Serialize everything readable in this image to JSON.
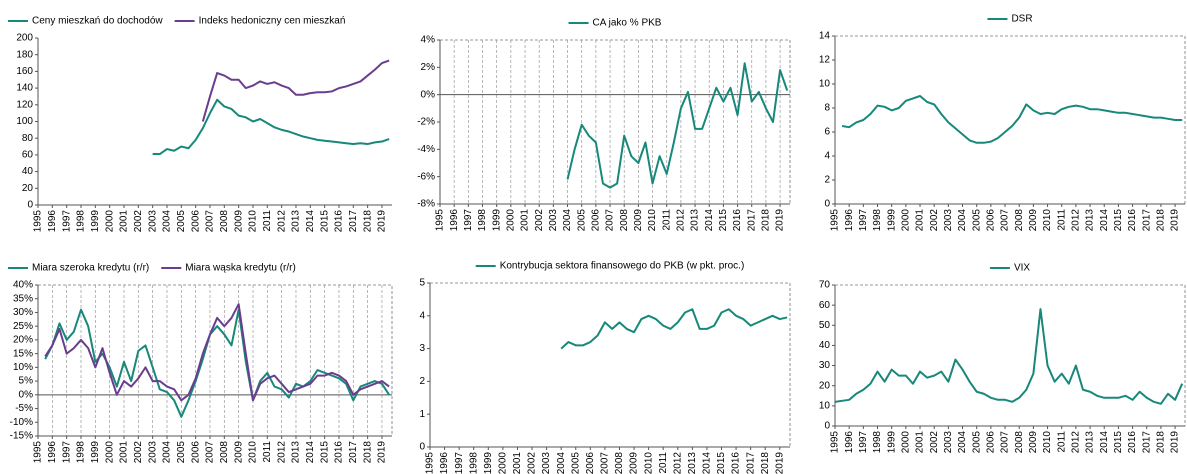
{
  "chart_data": [
    {
      "type": "line",
      "legend": "top-left",
      "grid": false,
      "frame": "axes",
      "series": [
        {
          "name": "Ceny mieszkań do dochodów",
          "color": "#17887a",
          "x": [
            2003,
            2003.5,
            2004,
            2004.5,
            2005,
            2005.5,
            2006,
            2006.5,
            2007,
            2007.5,
            2008,
            2008.5,
            2009,
            2009.5,
            2010,
            2010.5,
            2011,
            2011.5,
            2012,
            2012.5,
            2013,
            2013.5,
            2014,
            2014.5,
            2015,
            2015.5,
            2016,
            2016.5,
            2017,
            2017.5,
            2018,
            2018.5,
            2019,
            2019.5
          ],
          "values": [
            61,
            61,
            67,
            65,
            70,
            68,
            78,
            92,
            110,
            126,
            118,
            115,
            107,
            105,
            100,
            103,
            98,
            93,
            90,
            88,
            85,
            82,
            80,
            78,
            77,
            76,
            75,
            74,
            73,
            74,
            73,
            75,
            76,
            79
          ]
        },
        {
          "name": "Indeks hedoniczny cen mieszkań",
          "color": "#6a3d8f",
          "x": [
            2006.5,
            2007,
            2007.5,
            2008,
            2008.5,
            2009,
            2009.5,
            2010,
            2010.5,
            2011,
            2011.5,
            2012,
            2012.5,
            2013,
            2013.5,
            2014,
            2014.5,
            2015,
            2015.5,
            2016,
            2016.5,
            2017,
            2017.5,
            2018,
            2018.5,
            2019,
            2019.5
          ],
          "values": [
            100,
            130,
            158,
            155,
            150,
            150,
            140,
            143,
            148,
            145,
            147,
            143,
            140,
            132,
            132,
            134,
            135,
            135,
            136,
            140,
            142,
            145,
            148,
            155,
            162,
            170,
            173
          ]
        }
      ],
      "xlim": [
        1995,
        2019.7
      ],
      "xticks": [
        1995,
        1996,
        1997,
        1998,
        1999,
        2000,
        2001,
        2002,
        2003,
        2004,
        2005,
        2006,
        2007,
        2008,
        2009,
        2010,
        2011,
        2012,
        2013,
        2014,
        2015,
        2016,
        2017,
        2018,
        2019
      ],
      "ylim": [
        0,
        200
      ],
      "yticks": [
        0,
        20,
        40,
        60,
        80,
        100,
        120,
        140,
        160,
        180,
        200
      ]
    },
    {
      "type": "line",
      "legend": "top-center",
      "grid": true,
      "frame": "dashed",
      "series": [
        {
          "name": "CA jako % PKB",
          "color": "#17887a",
          "x": [
            2004,
            2004.5,
            2005,
            2005.5,
            2006,
            2006.5,
            2007,
            2007.5,
            2008,
            2008.5,
            2009,
            2009.5,
            2010,
            2010.5,
            2011,
            2011.5,
            2012,
            2012.5,
            2013,
            2013.5,
            2014,
            2014.5,
            2015,
            2015.5,
            2016,
            2016.5,
            2017,
            2017.5,
            2018,
            2018.5,
            2019,
            2019.5
          ],
          "values": [
            -6.2,
            -4,
            -2.2,
            -3,
            -3.5,
            -6.5,
            -6.8,
            -6.5,
            -3,
            -4.5,
            -5,
            -3.5,
            -6.5,
            -4.5,
            -5.8,
            -3.5,
            -1,
            0.2,
            -2.5,
            -2.5,
            -1,
            0.5,
            -0.5,
            0.5,
            -1.5,
            2.3,
            -0.5,
            0.2,
            -1,
            -2,
            1.8,
            0.3
          ]
        }
      ],
      "xlim": [
        1995,
        2019.7
      ],
      "xticks": [
        1995,
        1996,
        1997,
        1998,
        1999,
        2000,
        2001,
        2002,
        2003,
        2004,
        2005,
        2006,
        2007,
        2008,
        2009,
        2010,
        2011,
        2012,
        2013,
        2014,
        2015,
        2016,
        2017,
        2018,
        2019
      ],
      "ylim": [
        -8,
        4
      ],
      "yticks": [
        {
          "value": -8,
          "label": "-8%"
        },
        {
          "value": -6,
          "label": "-6%"
        },
        {
          "value": -4,
          "label": "-4%"
        },
        {
          "value": -2,
          "label": "-2%"
        },
        {
          "value": 0,
          "label": "0%"
        },
        {
          "value": 2,
          "label": "2%"
        },
        {
          "value": 4,
          "label": "4%"
        }
      ]
    },
    {
      "type": "line",
      "legend": "top-center",
      "grid": false,
      "frame": "dashed",
      "series": [
        {
          "name": "DSR",
          "color": "#17887a",
          "x": [
            1995.5,
            1996,
            1996.5,
            1997,
            1997.5,
            1998,
            1998.5,
            1999,
            1999.5,
            2000,
            2000.5,
            2001,
            2001.5,
            2002,
            2002.5,
            2003,
            2003.5,
            2004,
            2004.5,
            2005,
            2005.5,
            2006,
            2006.5,
            2007,
            2007.5,
            2008,
            2008.5,
            2009,
            2009.5,
            2010,
            2010.5,
            2011,
            2011.5,
            2012,
            2012.5,
            2013,
            2013.5,
            2014,
            2014.5,
            2015,
            2015.5,
            2016,
            2016.5,
            2017,
            2017.5,
            2018,
            2018.5,
            2019,
            2019.5
          ],
          "values": [
            6.5,
            6.4,
            6.8,
            7,
            7.5,
            8.2,
            8.1,
            7.8,
            8,
            8.6,
            8.8,
            9,
            8.5,
            8.3,
            7.5,
            6.8,
            6.3,
            5.8,
            5.3,
            5.1,
            5.1,
            5.2,
            5.5,
            6,
            6.5,
            7.2,
            8.3,
            7.8,
            7.5,
            7.6,
            7.5,
            7.9,
            8.1,
            8.2,
            8.1,
            7.9,
            7.9,
            7.8,
            7.7,
            7.6,
            7.6,
            7.5,
            7.4,
            7.3,
            7.2,
            7.2,
            7.1,
            7,
            7
          ]
        }
      ],
      "xlim": [
        1995,
        2019.7
      ],
      "xticks": [
        1995,
        1996,
        1997,
        1998,
        1999,
        2000,
        2001,
        2002,
        2003,
        2004,
        2005,
        2006,
        2007,
        2008,
        2009,
        2010,
        2011,
        2012,
        2013,
        2014,
        2015,
        2016,
        2017,
        2018,
        2019
      ],
      "ylim": [
        0,
        14
      ],
      "yticks": [
        0,
        2,
        4,
        6,
        8,
        10,
        12,
        14
      ]
    },
    {
      "type": "line",
      "legend": "top-left",
      "grid": true,
      "frame": "dashed",
      "series": [
        {
          "name": "Miara szeroka kredytu (r/r)",
          "color": "#17887a",
          "x": [
            1995.5,
            1996,
            1996.5,
            1997,
            1997.5,
            1998,
            1998.5,
            1999,
            1999.5,
            2000,
            2000.5,
            2001,
            2001.5,
            2002,
            2002.5,
            2003,
            2003.5,
            2004,
            2004.5,
            2005,
            2005.5,
            2006,
            2006.5,
            2007,
            2007.5,
            2008,
            2008.5,
            2009,
            2009.5,
            2010,
            2010.5,
            2011,
            2011.5,
            2012,
            2012.5,
            2013,
            2013.5,
            2014,
            2014.5,
            2015,
            2015.5,
            2016,
            2016.5,
            2017,
            2017.5,
            2018,
            2018.5,
            2019,
            2019.5
          ],
          "values": [
            13,
            18,
            26,
            20,
            23,
            31,
            25,
            12,
            15,
            10,
            3,
            12,
            5,
            16,
            18,
            10,
            2,
            1,
            -2,
            -8,
            -2,
            5,
            13,
            22,
            25,
            22,
            18,
            31,
            12,
            -2,
            5,
            8,
            3,
            2,
            -1,
            4,
            3,
            5,
            9,
            8,
            7,
            6,
            4,
            -2,
            3,
            4,
            5,
            4,
            0
          ]
        },
        {
          "name": "Miara wąska kredytu (r/r)",
          "color": "#6a3d8f",
          "x": [
            1995.5,
            1996,
            1996.5,
            1997,
            1997.5,
            1998,
            1998.5,
            1999,
            1999.5,
            2000,
            2000.5,
            2001,
            2001.5,
            2002,
            2002.5,
            2003,
            2003.5,
            2004,
            2004.5,
            2005,
            2005.5,
            2006,
            2006.5,
            2007,
            2007.5,
            2008,
            2008.5,
            2009,
            2009.5,
            2010,
            2010.5,
            2011,
            2011.5,
            2012,
            2012.5,
            2013,
            2013.5,
            2014,
            2014.5,
            2015,
            2015.5,
            2016,
            2016.5,
            2017,
            2017.5,
            2018,
            2018.5,
            2019,
            2019.5
          ],
          "values": [
            14,
            18,
            24,
            15,
            17,
            20,
            17,
            10,
            17,
            8,
            0,
            5,
            3,
            6,
            10,
            5,
            5,
            3,
            2,
            -2,
            0,
            6,
            15,
            22,
            28,
            25,
            28,
            33,
            15,
            -2,
            4,
            6,
            7,
            4,
            1,
            2,
            3,
            4,
            7,
            7,
            8,
            7,
            5,
            0,
            2,
            3,
            4,
            5,
            3
          ]
        }
      ],
      "xlim": [
        1995,
        2019.7
      ],
      "xticks": [
        1995,
        1996,
        1997,
        1998,
        1999,
        2000,
        2001,
        2002,
        2003,
        2004,
        2005,
        2006,
        2007,
        2008,
        2009,
        2010,
        2011,
        2012,
        2013,
        2014,
        2015,
        2016,
        2017,
        2018,
        2019
      ],
      "ylim": [
        -15,
        40
      ],
      "yticks": [
        {
          "value": -15,
          "label": "-15%"
        },
        {
          "value": -10,
          "label": "-10%"
        },
        {
          "value": -5,
          "label": "-5%"
        },
        {
          "value": 0,
          "label": "0%"
        },
        {
          "value": 5,
          "label": "5%"
        },
        {
          "value": 10,
          "label": "10%"
        },
        {
          "value": 15,
          "label": "15%"
        },
        {
          "value": 20,
          "label": "20%"
        },
        {
          "value": 25,
          "label": "25%"
        },
        {
          "value": 30,
          "label": "30%"
        },
        {
          "value": 35,
          "label": "35%"
        },
        {
          "value": 40,
          "label": "40%"
        }
      ]
    },
    {
      "type": "line",
      "legend": "top-center",
      "grid": false,
      "frame": "dashed",
      "series": [
        {
          "name": "Kontrybucja sektora finansowego do PKB (w pkt. proc.)",
          "color": "#17887a",
          "x": [
            2004,
            2004.5,
            2005,
            2005.5,
            2006,
            2006.5,
            2007,
            2007.5,
            2008,
            2008.5,
            2009,
            2009.5,
            2010,
            2010.5,
            2011,
            2011.5,
            2012,
            2012.5,
            2013,
            2013.5,
            2014,
            2014.5,
            2015,
            2015.5,
            2016,
            2016.5,
            2017,
            2017.5,
            2018,
            2018.5,
            2019,
            2019.5
          ],
          "values": [
            3,
            3.2,
            3.1,
            3.1,
            3.2,
            3.4,
            3.8,
            3.6,
            3.8,
            3.6,
            3.5,
            3.9,
            4,
            3.9,
            3.7,
            3.6,
            3.8,
            4.1,
            4.2,
            3.6,
            3.6,
            3.7,
            4.1,
            4.2,
            4,
            3.9,
            3.7,
            3.8,
            3.9,
            4,
            3.9,
            3.95
          ]
        }
      ],
      "xlim": [
        1995,
        2019.7
      ],
      "xticks": [
        1995,
        1996,
        1997,
        1998,
        1999,
        2000,
        2001,
        2002,
        2003,
        2004,
        2005,
        2006,
        2007,
        2008,
        2009,
        2010,
        2011,
        2012,
        2013,
        2014,
        2015,
        2016,
        2017,
        2018,
        2019
      ],
      "ylim": [
        0,
        5
      ],
      "yticks": [
        0,
        1,
        2,
        3,
        4,
        5
      ]
    },
    {
      "type": "line",
      "legend": "top-center",
      "grid": false,
      "frame": "dashed",
      "series": [
        {
          "name": "VIX",
          "color": "#17887a",
          "x": [
            1995,
            1995.5,
            1996,
            1996.5,
            1997,
            1997.5,
            1998,
            1998.5,
            1999,
            1999.5,
            2000,
            2000.5,
            2001,
            2001.5,
            2002,
            2002.5,
            2003,
            2003.5,
            2004,
            2004.5,
            2005,
            2005.5,
            2006,
            2006.5,
            2007,
            2007.5,
            2008,
            2008.5,
            2009,
            2009.5,
            2010,
            2010.5,
            2011,
            2011.5,
            2012,
            2012.5,
            2013,
            2013.5,
            2014,
            2014.5,
            2015,
            2015.5,
            2016,
            2016.5,
            2017,
            2017.5,
            2018,
            2018.5,
            2019,
            2019.5
          ],
          "values": [
            12,
            12.5,
            13,
            16,
            18,
            21,
            27,
            22,
            28,
            25,
            25,
            21,
            27,
            24,
            25,
            27,
            22,
            33,
            28,
            22,
            17,
            16,
            14,
            13,
            13,
            12,
            14,
            18,
            26,
            58,
            30,
            22,
            26,
            21,
            30,
            18,
            17,
            15,
            14,
            14,
            14,
            15,
            13,
            17,
            14,
            12,
            11,
            16,
            13,
            21
          ]
        }
      ],
      "xlim": [
        1995,
        2019.7
      ],
      "xticks": [
        1995,
        1996,
        1997,
        1998,
        1999,
        2000,
        2001,
        2002,
        2003,
        2004,
        2005,
        2006,
        2007,
        2008,
        2009,
        2010,
        2011,
        2012,
        2013,
        2014,
        2015,
        2016,
        2017,
        2018,
        2019
      ],
      "ylim": [
        0,
        70
      ],
      "yticks": [
        0,
        10,
        20,
        30,
        40,
        50,
        60,
        70
      ]
    }
  ]
}
